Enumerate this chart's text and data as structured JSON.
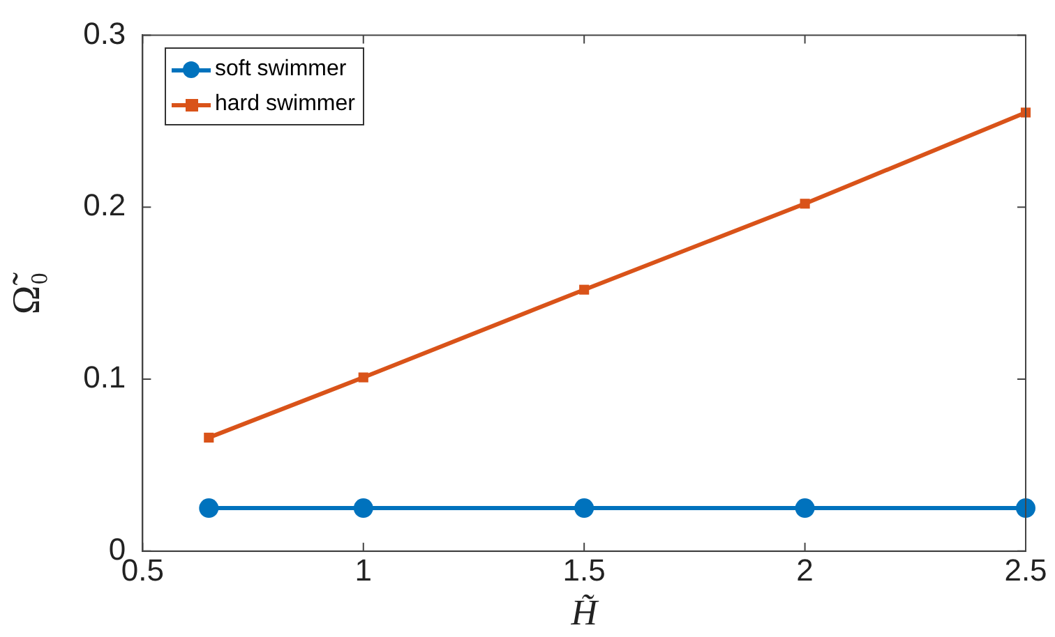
{
  "chart_data": {
    "type": "line",
    "xlabel": "H̃",
    "ylabel": "Ω̃₀",
    "x": [
      0.65,
      1,
      1.5,
      2,
      2.5
    ],
    "series": [
      {
        "name": "soft swimmer",
        "color": "#0072bd",
        "marker": "circle",
        "values": [
          0.025,
          0.025,
          0.025,
          0.025,
          0.025
        ]
      },
      {
        "name": "hard swimmer",
        "color": "#d95319",
        "marker": "square",
        "values": [
          0.066,
          0.101,
          0.152,
          0.202,
          0.255
        ]
      }
    ],
    "xlim": [
      0.5,
      2.5
    ],
    "xticks": [
      0.5,
      1,
      1.5,
      2,
      2.5
    ],
    "ylim": [
      0,
      0.3
    ],
    "yticks": [
      0,
      0.1,
      0.2,
      0.3
    ],
    "grid": false,
    "legend": "top left",
    "line_style": "solid"
  }
}
